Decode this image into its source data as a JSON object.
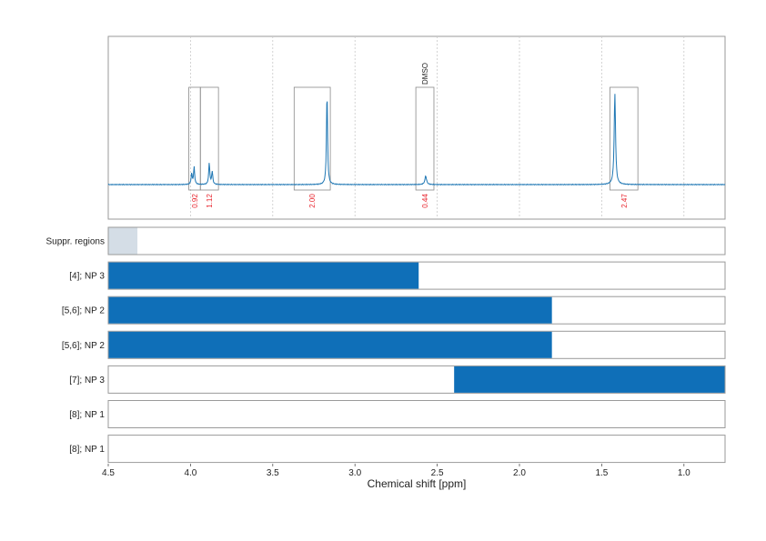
{
  "chart_data": {
    "type": "line",
    "xlabel": "Chemical shift [ppm]",
    "x_reversed": true,
    "xlim": [
      4.5,
      0.75
    ],
    "x_ticks": [
      "4.5",
      "4.0",
      "3.5",
      "3.0",
      "2.5",
      "2.0",
      "1.5",
      "1.0"
    ],
    "x_tick_values": [
      4.5,
      4.0,
      3.5,
      3.0,
      2.5,
      2.0,
      1.5,
      1.0
    ],
    "grid": true,
    "spectrum": {
      "color": "#1f77b4",
      "peaks": [
        {
          "ppm": 3.993,
          "height": 0.1,
          "width": 0.004
        },
        {
          "ppm": 3.978,
          "height": 0.16,
          "width": 0.004
        },
        {
          "ppm": 3.886,
          "height": 0.2,
          "width": 0.004
        },
        {
          "ppm": 3.868,
          "height": 0.12,
          "width": 0.004
        },
        {
          "ppm": 3.17,
          "height": 0.85,
          "width": 0.004
        },
        {
          "ppm": 2.57,
          "height": 0.08,
          "width": 0.006
        },
        {
          "ppm": 1.42,
          "height": 0.85,
          "width": 0.005
        }
      ]
    },
    "integrals": [
      {
        "from": 4.01,
        "to": 3.94,
        "label": "0.92"
      },
      {
        "from": 3.94,
        "to": 3.83,
        "label": "1.12"
      },
      {
        "from": 3.37,
        "to": 3.15,
        "label": "2.00"
      },
      {
        "from": 2.63,
        "to": 2.52,
        "label": "0.44"
      },
      {
        "from": 1.45,
        "to": 1.28,
        "label": "2.47"
      }
    ],
    "region_annotations": [
      {
        "ppm": 2.575,
        "label": "DMSO"
      }
    ],
    "range_rows": [
      {
        "label": "Suppr. regions",
        "from": 4.5,
        "to": 4.32,
        "color": "#d4dde6"
      },
      {
        "label": "[4]; NP 3",
        "from": 4.5,
        "to": 2.61,
        "color": "#0f6fb8"
      },
      {
        "label": "[5,6]; NP 2",
        "from": 4.5,
        "to": 1.8,
        "color": "#0f6fb8"
      },
      {
        "label": "[5,6]; NP 2",
        "from": 4.5,
        "to": 1.8,
        "color": "#0f6fb8"
      },
      {
        "label": "[7]; NP 3",
        "from": 2.4,
        "to": 0.75,
        "color": "#0f6fb8"
      },
      {
        "label": "[8]; NP 1",
        "from": null,
        "to": null,
        "color": "#0f6fb8"
      },
      {
        "label": "[8]; NP 1",
        "from": null,
        "to": null,
        "color": "#0f6fb8"
      }
    ]
  }
}
